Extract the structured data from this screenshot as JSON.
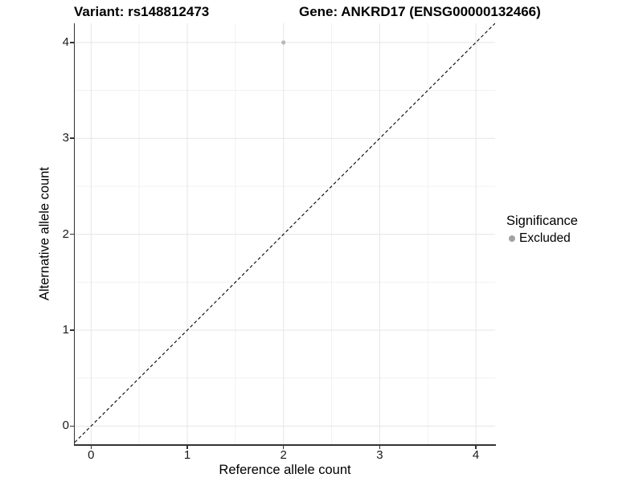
{
  "chart_data": {
    "type": "scatter",
    "title_left": "Variant: rs148812473",
    "title_right": "Gene: ANKRD17 (ENSG00000132466)",
    "xlabel": "Reference allele count",
    "ylabel": "Alternative allele count",
    "x_ticks": [
      0,
      1,
      2,
      3,
      4
    ],
    "y_ticks": [
      0,
      1,
      2,
      3,
      4
    ],
    "xlim": [
      -0.17,
      4.2
    ],
    "ylim": [
      -0.19,
      4.2
    ],
    "grid": "major and minor gridlines, light gray on white",
    "points": [
      {
        "x": 2,
        "y": 4,
        "significance": "Excluded"
      }
    ],
    "abline": {
      "slope": 1,
      "intercept": 0,
      "style": "dashed",
      "color": "#000000"
    },
    "legend": {
      "title": "Significance",
      "position": "right",
      "items": [
        {
          "label": "Excluded",
          "color": "#a2a2a2"
        }
      ]
    },
    "point_color": "#b8b8b8",
    "point_radius": 2.6
  },
  "colors": {
    "background": "#ffffff",
    "axis_line": "#333333",
    "grid_major": "#e5e5e5",
    "grid_minor": "#f1f1f1",
    "tick_text": "#1a1a1a",
    "title_text": "#000000"
  }
}
